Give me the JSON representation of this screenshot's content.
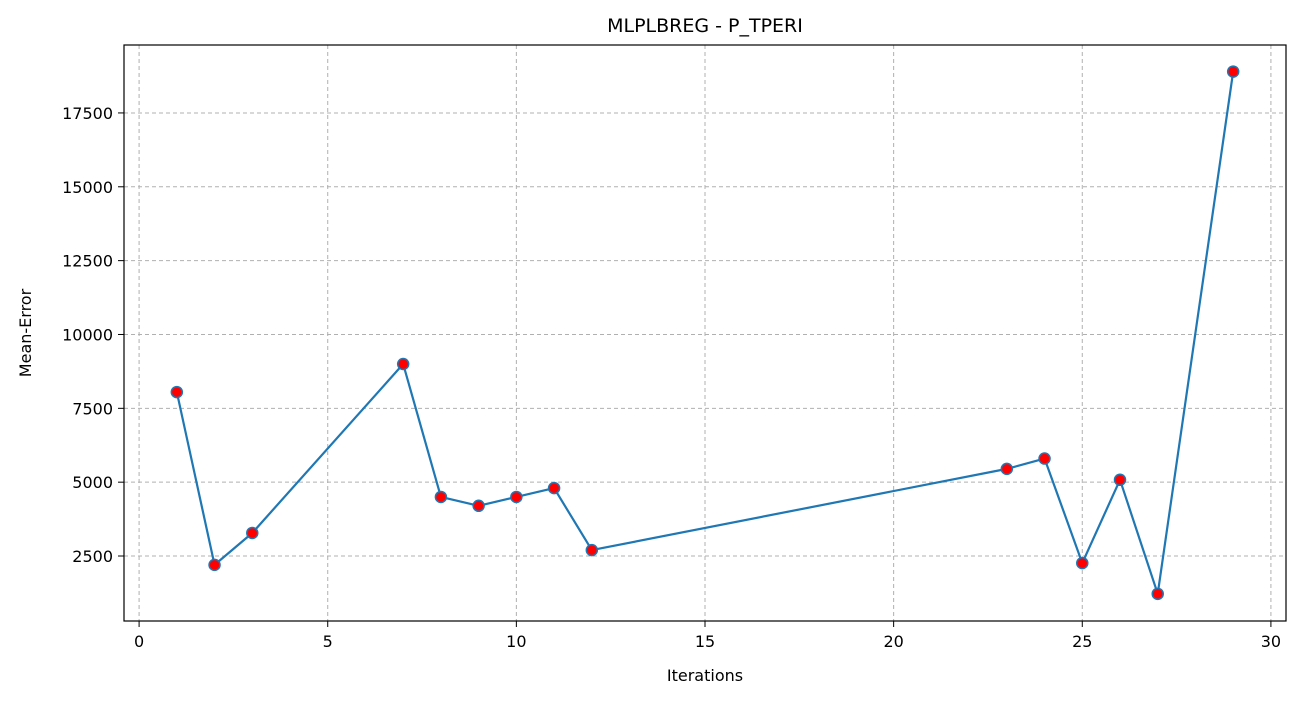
{
  "chart_data": {
    "type": "line",
    "title": "MLPLBREG - P_TPERI",
    "xlabel": "Iterations",
    "ylabel": "Mean-Error",
    "xlim": [
      -0.4,
      30.4
    ],
    "ylim": [
      300,
      19800
    ],
    "x_ticks": [
      0,
      5,
      10,
      15,
      20,
      25,
      30
    ],
    "y_ticks": [
      2500,
      5000,
      7500,
      10000,
      12500,
      15000,
      17500
    ],
    "grid": true,
    "legend": "none",
    "series": [
      {
        "x": [
          1,
          2,
          3,
          7,
          8,
          9,
          10,
          11,
          12,
          23,
          24,
          25,
          26,
          27,
          29
        ],
        "y": [
          8050,
          2200,
          3280,
          9000,
          4500,
          4200,
          4500,
          4800,
          2700,
          5450,
          5800,
          2260,
          5080,
          1220,
          18900
        ],
        "line_color": "#1f77b4",
        "marker_color": "#ff0000"
      }
    ]
  }
}
